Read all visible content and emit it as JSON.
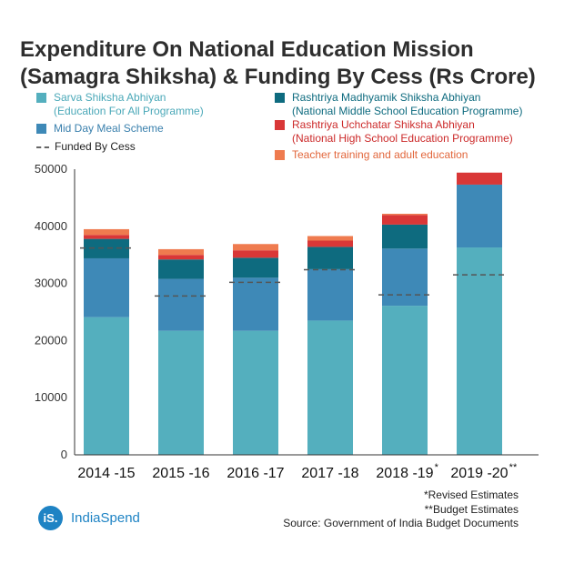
{
  "colors": {
    "ssa": "#54afbe",
    "mdm": "#3e89b7",
    "rmsa": "#0e6b7f",
    "rusa": "#d93737",
    "teacher": "#ef7b4f",
    "cess_line": "#555555",
    "axis_text": "#333333",
    "logo": "#1e83c4"
  },
  "chart_data": {
    "type": "bar",
    "stacked": true,
    "title": "Expenditure On National Education Mission (Samagra Shiksha) & Funding By Cess (Rs Crore)",
    "title_lines": [
      "Expenditure On National Education Mission",
      "(Samagra Shiksha) & Funding By Cess (Rs Crore)"
    ],
    "categories": [
      "2014 -15",
      "2015 -16",
      "2016 -17",
      "2017 -18",
      "2018 -19",
      "2019 -20"
    ],
    "category_superscripts": [
      "",
      "",
      "",
      "",
      "*",
      "**"
    ],
    "ylim": [
      0,
      50000
    ],
    "yticks": [
      0,
      10000,
      20000,
      30000,
      40000,
      50000
    ],
    "grid": false,
    "legend_position": "top",
    "series": [
      {
        "key": "ssa",
        "label_lines": [
          "Sarva Shiksha Abhiyan",
          "(Education For All Programme)"
        ],
        "values": [
          24100,
          21700,
          21700,
          23500,
          26100,
          36300
        ]
      },
      {
        "key": "mdm",
        "label_lines": [
          "Mid Day Meal Scheme"
        ],
        "values": [
          10300,
          9100,
          9300,
          9000,
          10000,
          11000
        ]
      },
      {
        "key": "rmsa",
        "label_lines": [
          "Rashtriya Madhyamik Shiksha Abhiyan",
          "(National Middle School Education Programme)"
        ],
        "values": [
          3400,
          3400,
          3500,
          3900,
          4200,
          0
        ]
      },
      {
        "key": "rusa",
        "label_lines": [
          "Rashtriya Uchchatar Shiksha Abhiyan",
          "(National High School Education Programme)"
        ],
        "values": [
          700,
          800,
          1300,
          1100,
          1700,
          2100
        ]
      },
      {
        "key": "teacher",
        "label_lines": [
          "Teacher training and adult education"
        ],
        "values": [
          1000,
          1000,
          1100,
          800,
          200,
          0
        ]
      }
    ],
    "cess_series": {
      "label": "Funded By Cess",
      "values": [
        36200,
        27800,
        30200,
        32400,
        28000,
        31500
      ]
    }
  },
  "legend": [
    {
      "key": "ssa",
      "type": "swatch",
      "label_lines": [
        "Sarva Shiksha Abhiyan",
        "(Education For All Programme)"
      ]
    },
    {
      "key": "mdm",
      "type": "swatch",
      "label_lines": [
        "Mid Day Meal Scheme"
      ]
    },
    {
      "key": "cess",
      "type": "dash",
      "label_lines": [
        "Funded By Cess"
      ]
    },
    {
      "key": "rmsa",
      "type": "swatch",
      "label_lines": [
        "Rashtriya Madhyamik Shiksha Abhiyan",
        "(National Middle School Education Programme)"
      ]
    },
    {
      "key": "rusa",
      "type": "swatch",
      "label_lines": [
        "Rashtriya Uchchatar Shiksha Abhiyan",
        "(National High School Education Programme)"
      ]
    },
    {
      "key": "teacher",
      "type": "swatch",
      "label_lines": [
        "Teacher training and adult education"
      ]
    }
  ],
  "notes": {
    "revised": "*Revised Estimates",
    "budget": "**Budget Estimates",
    "source": "Source: Government of India Budget Documents"
  },
  "logo": {
    "mark": "iS.",
    "name": "IndiaSpend"
  }
}
